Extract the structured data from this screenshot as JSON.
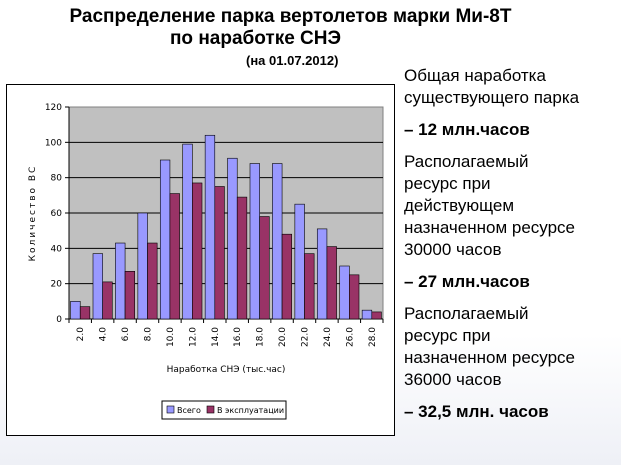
{
  "title_line1": "Распределение  парка вертолетов марки Ми-8Т",
  "title_line2": "по  наработке  СНЭ",
  "subtitle": "(на 01.07.2012)",
  "right_panel": {
    "t1": "Общая наработка",
    "t2": "существующего парка",
    "v1": " – 12 млн.часов",
    "t3": "Располагаемый",
    "t4": "ресурс при",
    "t5": "действующем",
    "t6": "назначенном ресурсе",
    "t7": "30000 часов",
    "v2": "– 27 млн.часов",
    "t8": "Располагаемый",
    "t9": "ресурс при",
    "t10": "назначенном ресурсе",
    "t11": "36000 часов",
    "v3": "– 32,5 млн. часов"
  },
  "chart_data": {
    "type": "bar",
    "categories": [
      "2.0",
      "4.0",
      "6.0",
      "8.0",
      "10.0",
      "12.0",
      "14.0",
      "16.0",
      "18.0",
      "20.0",
      "22.0",
      "24.0",
      "26.0",
      "28.0"
    ],
    "series": [
      {
        "name": "Всего",
        "color": "#9999ff",
        "values": [
          10,
          37,
          43,
          60,
          90,
          99,
          104,
          91,
          88,
          88,
          65,
          51,
          30,
          5
        ]
      },
      {
        "name": "В эксплуатации",
        "color": "#993366",
        "values": [
          7,
          21,
          27,
          43,
          71,
          77,
          75,
          69,
          58,
          48,
          37,
          41,
          25,
          4
        ]
      }
    ],
    "xlabel": "Наработка СНЭ (тыс.час)",
    "ylabel": "Количество ВС",
    "ylim": [
      0,
      120
    ],
    "yticks": [
      0,
      20,
      40,
      60,
      80,
      100,
      120
    ],
    "grid": true,
    "legend_position": "bottom",
    "plot_background": "#c0c0c0"
  }
}
